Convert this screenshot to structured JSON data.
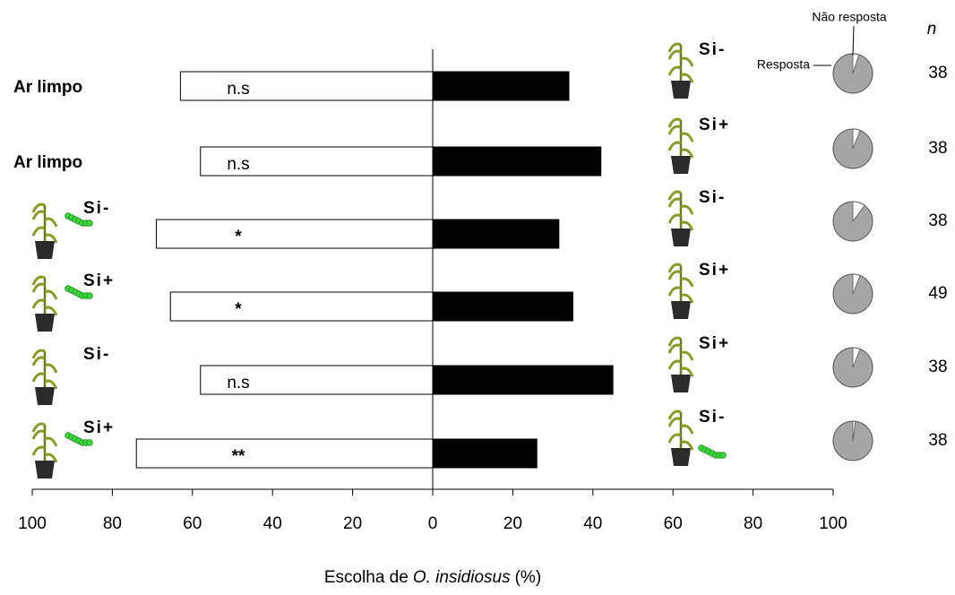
{
  "chart_data": {
    "type": "bar",
    "left_labels": [
      "Ar limpo",
      "Ar limpo",
      "Si-",
      "Si+",
      "Si-",
      "Si+"
    ],
    "left_plant": [
      false,
      false,
      true,
      true,
      true,
      true
    ],
    "left_herbivore": [
      false,
      false,
      true,
      true,
      false,
      true
    ],
    "right_labels": [
      "Si-",
      "Si+",
      "Si-",
      "Si+",
      "Si+",
      "Si-"
    ],
    "right_herbivore": [
      false,
      false,
      false,
      false,
      false,
      true
    ],
    "series": [
      {
        "color": "#ffffff",
        "values": [
          -63,
          -58,
          -69,
          -65.5,
          -58,
          -74
        ]
      },
      {
        "color": "#000000",
        "values": [
          34,
          42,
          31.5,
          35,
          45,
          26
        ]
      }
    ],
    "annotations": [
      "n.s",
      "n.s",
      "*",
      "*",
      "n.s",
      "**"
    ],
    "xlim": [
      -100,
      100
    ],
    "xticks": [
      {
        "value": -100,
        "label": "100"
      },
      {
        "value": -80,
        "label": "80"
      },
      {
        "value": -60,
        "label": "60"
      },
      {
        "value": -40,
        "label": "40"
      },
      {
        "value": -20,
        "label": "20"
      },
      0,
      20,
      40,
      60,
      80,
      100
    ],
    "xlabel": [
      "Escolha de",
      "O. insidiosus",
      "(%)"
    ],
    "pie_labels": [
      "Não resposta",
      "Resposta"
    ],
    "pie_colors": [
      "#ffffff",
      "#a6a6a6"
    ],
    "nonresponse": [
      5,
      6,
      10,
      6,
      6,
      2
    ],
    "n_header": "n",
    "n": [
      38,
      38,
      38,
      49,
      38,
      38
    ]
  }
}
